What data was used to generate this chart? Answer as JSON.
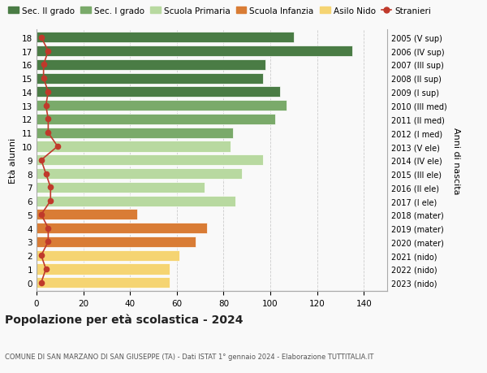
{
  "ages": [
    18,
    17,
    16,
    15,
    14,
    13,
    12,
    11,
    10,
    9,
    8,
    7,
    6,
    5,
    4,
    3,
    2,
    1,
    0
  ],
  "values": [
    110,
    135,
    98,
    97,
    104,
    107,
    102,
    84,
    83,
    97,
    88,
    72,
    85,
    43,
    73,
    68,
    61,
    57,
    57
  ],
  "stranieri": [
    2,
    5,
    3,
    3,
    5,
    4,
    5,
    5,
    9,
    2,
    4,
    6,
    6,
    2,
    5,
    5,
    2,
    4,
    2
  ],
  "right_labels": [
    "2005 (V sup)",
    "2006 (IV sup)",
    "2007 (III sup)",
    "2008 (II sup)",
    "2009 (I sup)",
    "2010 (III med)",
    "2011 (II med)",
    "2012 (I med)",
    "2013 (V ele)",
    "2014 (IV ele)",
    "2015 (III ele)",
    "2016 (II ele)",
    "2017 (I ele)",
    "2018 (mater)",
    "2019 (mater)",
    "2020 (mater)",
    "2021 (nido)",
    "2022 (nido)",
    "2023 (nido)"
  ],
  "bar_colors": [
    "#4a7c45",
    "#4a7c45",
    "#4a7c45",
    "#4a7c45",
    "#4a7c45",
    "#7aaa6a",
    "#7aaa6a",
    "#7aaa6a",
    "#b8d9a0",
    "#b8d9a0",
    "#b8d9a0",
    "#b8d9a0",
    "#b8d9a0",
    "#d97c35",
    "#d97c35",
    "#d97c35",
    "#f5d472",
    "#f5d472",
    "#f5d472"
  ],
  "legend_labels": [
    "Sec. II grado",
    "Sec. I grado",
    "Scuola Primaria",
    "Scuola Infanzia",
    "Asilo Nido",
    "Stranieri"
  ],
  "legend_colors": [
    "#4a7c45",
    "#7aaa6a",
    "#b8d9a0",
    "#d97c35",
    "#f5d472",
    "#c0392b"
  ],
  "ylabel_left": "Età alunni",
  "ylabel_right": "Anni di nascita",
  "title": "Popolazione per età scolastica - 2024",
  "subtitle": "COMUNE DI SAN MARZANO DI SAN GIUSEPPE (TA) - Dati ISTAT 1° gennaio 2024 - Elaborazione TUTTITALIA.IT",
  "xlim": [
    0,
    150
  ],
  "xticks": [
    0,
    20,
    40,
    60,
    80,
    100,
    120,
    140
  ],
  "bg_color": "#f9f9f9",
  "grid_color": "#cccccc",
  "stranieri_color": "#c0392b",
  "stranieri_line_color": "#c0392b"
}
